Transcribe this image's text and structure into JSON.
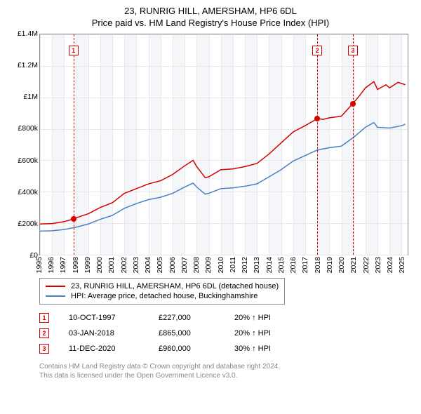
{
  "title": {
    "main": "23, RUNRIG HILL, AMERSHAM, HP6 6DL",
    "sub": "Price paid vs. HM Land Registry's House Price Index (HPI)"
  },
  "chart": {
    "type": "line",
    "x": {
      "min": 1995,
      "max": 2025.5,
      "ticks": [
        1995,
        1996,
        1997,
        1998,
        1999,
        2000,
        2001,
        2002,
        2003,
        2004,
        2005,
        2006,
        2007,
        2008,
        2009,
        2010,
        2011,
        2012,
        2013,
        2014,
        2015,
        2016,
        2017,
        2018,
        2019,
        2020,
        2021,
        2022,
        2023,
        2024,
        2025
      ]
    },
    "y": {
      "min": 0,
      "max": 1400000,
      "ticks": [
        {
          "v": 0,
          "label": "£0"
        },
        {
          "v": 200000,
          "label": "£200k"
        },
        {
          "v": 400000,
          "label": "£400k"
        },
        {
          "v": 600000,
          "label": "£600k"
        },
        {
          "v": 800000,
          "label": "£800k"
        },
        {
          "v": 1000000,
          "label": "£1M"
        },
        {
          "v": 1200000,
          "label": "£1.2M"
        },
        {
          "v": 1400000,
          "label": "£1.4M"
        }
      ]
    },
    "background": "#ffffff",
    "band_color": "#f4f6fa",
    "grid_color": "#e8e8e8",
    "series": [
      {
        "name": "23, RUNRIG HILL, AMERSHAM, HP6 6DL (detached house)",
        "color": "#d60000",
        "width": 1.5,
        "data": [
          [
            1995,
            195000
          ],
          [
            1996,
            198000
          ],
          [
            1997,
            210000
          ],
          [
            1997.78,
            227000
          ],
          [
            1998,
            235000
          ],
          [
            1999,
            260000
          ],
          [
            2000,
            300000
          ],
          [
            2001,
            330000
          ],
          [
            2002,
            390000
          ],
          [
            2003,
            420000
          ],
          [
            2004,
            450000
          ],
          [
            2005,
            470000
          ],
          [
            2006,
            510000
          ],
          [
            2007,
            565000
          ],
          [
            2007.7,
            600000
          ],
          [
            2008,
            560000
          ],
          [
            2008.7,
            490000
          ],
          [
            2009,
            495000
          ],
          [
            2010,
            540000
          ],
          [
            2011,
            545000
          ],
          [
            2012,
            560000
          ],
          [
            2013,
            580000
          ],
          [
            2014,
            640000
          ],
          [
            2015,
            710000
          ],
          [
            2016,
            780000
          ],
          [
            2017,
            820000
          ],
          [
            2018.01,
            865000
          ],
          [
            2018.5,
            860000
          ],
          [
            2019,
            870000
          ],
          [
            2020,
            880000
          ],
          [
            2020.95,
            960000
          ],
          [
            2021.5,
            1010000
          ],
          [
            2022,
            1060000
          ],
          [
            2022.7,
            1100000
          ],
          [
            2023,
            1050000
          ],
          [
            2023.7,
            1080000
          ],
          [
            2024,
            1060000
          ],
          [
            2024.7,
            1095000
          ],
          [
            2025.3,
            1080000
          ]
        ]
      },
      {
        "name": "HPI: Average price, detached house, Buckinghamshire",
        "color": "#4a7fc4",
        "width": 1.5,
        "data": [
          [
            1995,
            150000
          ],
          [
            1996,
            152000
          ],
          [
            1997,
            160000
          ],
          [
            1998,
            175000
          ],
          [
            1999,
            195000
          ],
          [
            2000,
            225000
          ],
          [
            2001,
            250000
          ],
          [
            2002,
            295000
          ],
          [
            2003,
            325000
          ],
          [
            2004,
            350000
          ],
          [
            2005,
            365000
          ],
          [
            2006,
            390000
          ],
          [
            2007,
            430000
          ],
          [
            2007.7,
            455000
          ],
          [
            2008,
            430000
          ],
          [
            2008.7,
            385000
          ],
          [
            2009,
            390000
          ],
          [
            2010,
            420000
          ],
          [
            2011,
            425000
          ],
          [
            2012,
            435000
          ],
          [
            2013,
            450000
          ],
          [
            2014,
            495000
          ],
          [
            2015,
            540000
          ],
          [
            2016,
            595000
          ],
          [
            2017,
            630000
          ],
          [
            2018,
            665000
          ],
          [
            2019,
            680000
          ],
          [
            2020,
            690000
          ],
          [
            2021,
            745000
          ],
          [
            2022,
            810000
          ],
          [
            2022.7,
            840000
          ],
          [
            2023,
            810000
          ],
          [
            2024,
            805000
          ],
          [
            2025,
            820000
          ],
          [
            2025.3,
            830000
          ]
        ]
      }
    ],
    "sale_markers": [
      {
        "n": "1",
        "x": 1997.78,
        "y": 227000
      },
      {
        "n": "2",
        "x": 2018.01,
        "y": 865000
      },
      {
        "n": "3",
        "x": 2020.95,
        "y": 960000
      }
    ],
    "dot_color": "#d60000",
    "marker_line_color": "#d60000"
  },
  "legend": [
    {
      "color": "#d60000",
      "label": "23, RUNRIG HILL, AMERSHAM, HP6 6DL (detached house)"
    },
    {
      "color": "#4a7fc4",
      "label": "HPI: Average price, detached house, Buckinghamshire"
    }
  ],
  "events": [
    {
      "n": "1",
      "date": "10-OCT-1997",
      "price": "£227,000",
      "delta": "20% ↑ HPI"
    },
    {
      "n": "2",
      "date": "03-JAN-2018",
      "price": "£865,000",
      "delta": "20% ↑ HPI"
    },
    {
      "n": "3",
      "date": "11-DEC-2020",
      "price": "£960,000",
      "delta": "30% ↑ HPI"
    }
  ],
  "attribution": {
    "line1": "Contains HM Land Registry data © Crown copyright and database right 2024.",
    "line2": "This data is licensed under the Open Government Licence v3.0."
  }
}
